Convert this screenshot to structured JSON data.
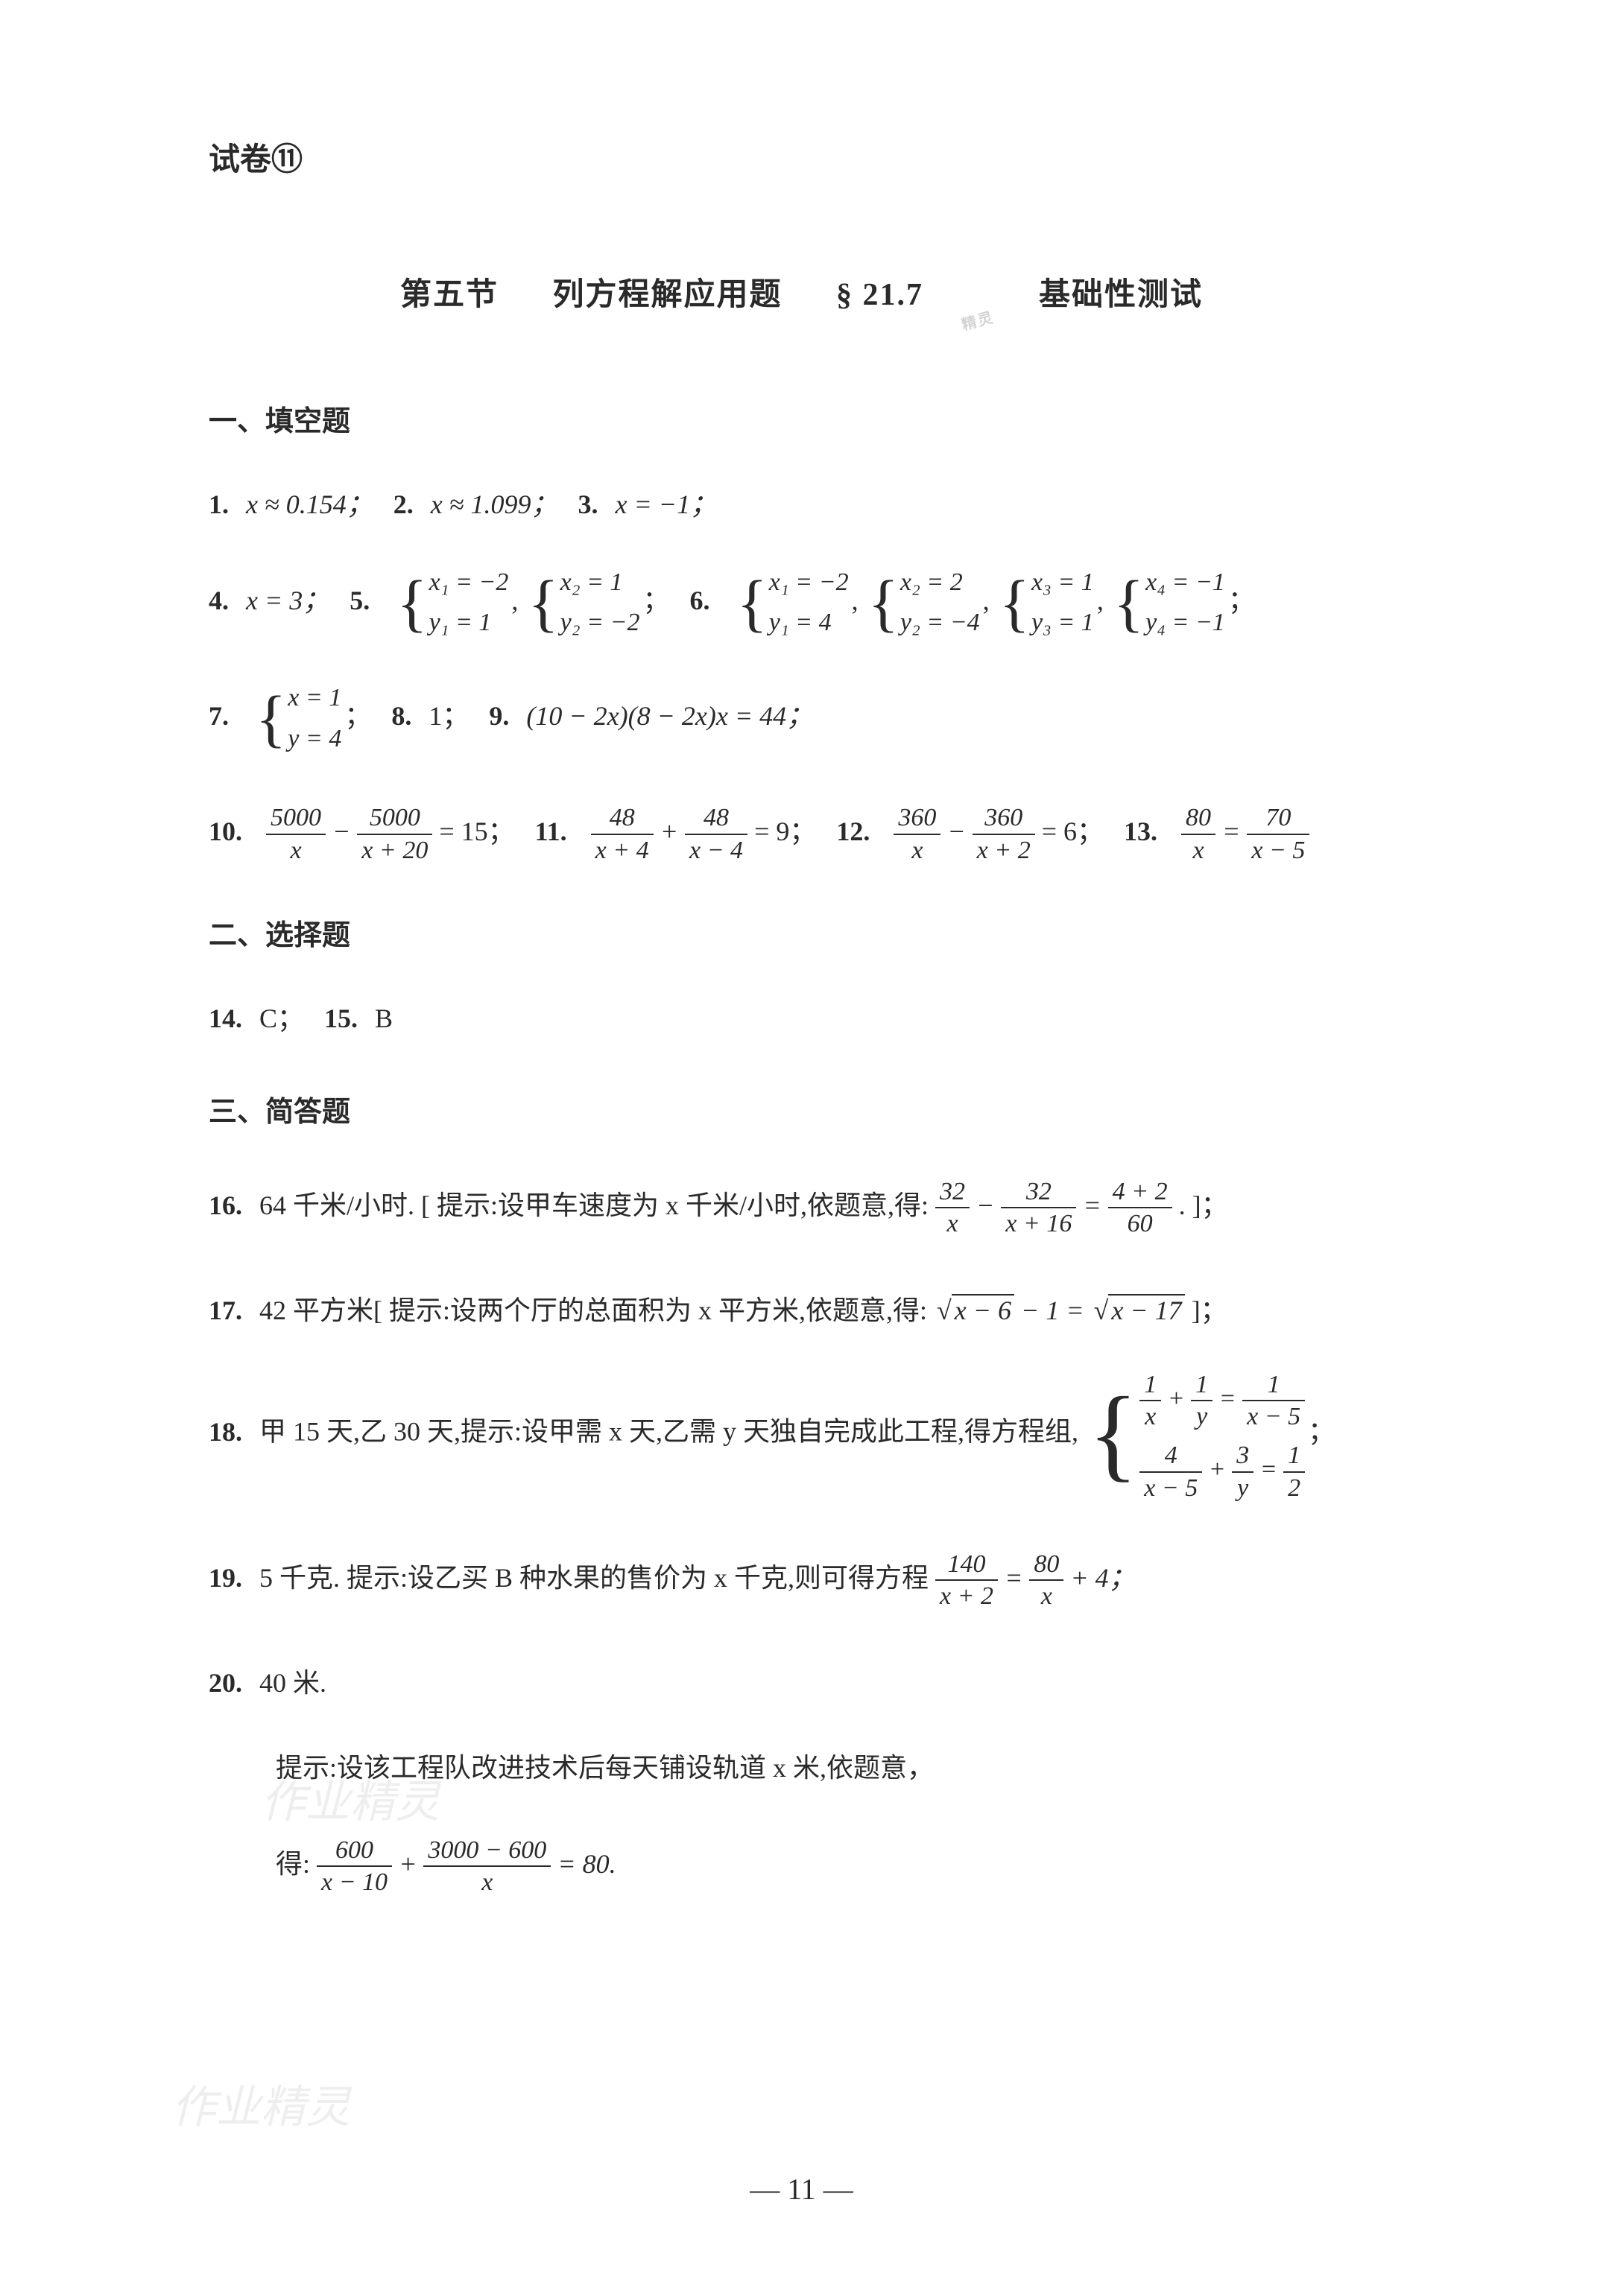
{
  "paper_label": "试卷⑪",
  "title": {
    "section": "第五节",
    "topic": "列方程解应用题",
    "chapter": "§ 21.7",
    "type": "基础性测试"
  },
  "sections": {
    "s1": {
      "header": "一、填空题"
    },
    "s2": {
      "header": "二、选择题"
    },
    "s3": {
      "header": "三、简答题"
    }
  },
  "answers": {
    "a1": "x ≈ 0.154；",
    "a2": "x ≈ 1.099；",
    "a3": "x = −1；",
    "a4": "x = 3；",
    "a5": {
      "g1": {
        "l1": "x₁ = −2",
        "l2": "y₁ = 1"
      },
      "g2": {
        "l1": "x₂ = 1",
        "l2": "y₂ = −2"
      }
    },
    "a6": {
      "g1": {
        "l1": "x₁ = −2",
        "l2": "y₁ = 4"
      },
      "g2": {
        "l1": "x₂ = 2",
        "l2": "y₂ = −4"
      },
      "g3": {
        "l1": "x₃ = 1",
        "l2": "y₃ = 1"
      },
      "g4": {
        "l1": "x₄ = −1",
        "l2": "y₄ = −1"
      }
    },
    "a7": {
      "l1": "x = 1",
      "l2": "y = 4"
    },
    "a8": "1；",
    "a9": "(10 − 2x)(8 − 2x)x = 44；",
    "a10": {
      "f1t": "5000",
      "f1b": "x",
      "f2t": "5000",
      "f2b": "x + 20",
      "eq": "= 15；"
    },
    "a11": {
      "f1t": "48",
      "f1b": "x + 4",
      "f2t": "48",
      "f2b": "x − 4",
      "eq": "= 9；"
    },
    "a12": {
      "f1t": "360",
      "f1b": "x",
      "f2t": "360",
      "f2b": "x + 2",
      "eq": "= 6；"
    },
    "a13": {
      "f1t": "80",
      "f1b": "x",
      "f2t": "70",
      "f2b": "x − 5"
    },
    "a14": "C；",
    "a15": "B",
    "a16": {
      "ans": "64 千米/小时. [ 提示:设甲车速度为 x 千米/小时,依题意,得:",
      "f1t": "32",
      "f1b": "x",
      "f2t": "32",
      "f2b": "x + 16",
      "f3t": "4 + 2",
      "f3b": "60",
      "tail": ". ]；"
    },
    "a17": {
      "ans": "42 平方米[ 提示:设两个厅的总面积为 x 平方米,依题意,得:",
      "sq1": "x − 6",
      "mid": "− 1 =",
      "sq2": "x − 17",
      "tail": "]；"
    },
    "a18": {
      "ans": "甲 15 天,乙 30 天,提示:设甲需 x 天,乙需 y 天独自完成此工程,得方程组,",
      "eq1": {
        "f1t": "1",
        "f1b": "x",
        "f2t": "1",
        "f2b": "y",
        "f3t": "1",
        "f3b": "x − 5"
      },
      "eq2": {
        "f1t": "4",
        "f1b": "x − 5",
        "f2t": "3",
        "f2b": "y",
        "f3t": "1",
        "f3b": "2"
      },
      "tail": "；"
    },
    "a19": {
      "ans": "5 千克. 提示:设乙买 B 种水果的售价为 x 千克,则可得方程",
      "f1t": "140",
      "f1b": "x + 2",
      "f2t": "80",
      "f2b": "x",
      "tail": "+ 4；"
    },
    "a20": {
      "ans": "40 米.",
      "hint": "提示:设该工程队改进技术后每天铺设轨道 x 米,依题意，",
      "pre": "得:",
      "f1t": "600",
      "f1b": "x − 10",
      "f2t": "3000 − 600",
      "f2b": "x",
      "tail": "= 80."
    }
  },
  "watermark": "作业精灵",
  "page_number": "— 11 —",
  "colors": {
    "background": "#ffffff",
    "text": "#2a2a2a",
    "watermark": "#d0d0d0"
  },
  "typography": {
    "body_fontsize": 36,
    "title_fontsize": 42,
    "header_fontsize": 38
  }
}
